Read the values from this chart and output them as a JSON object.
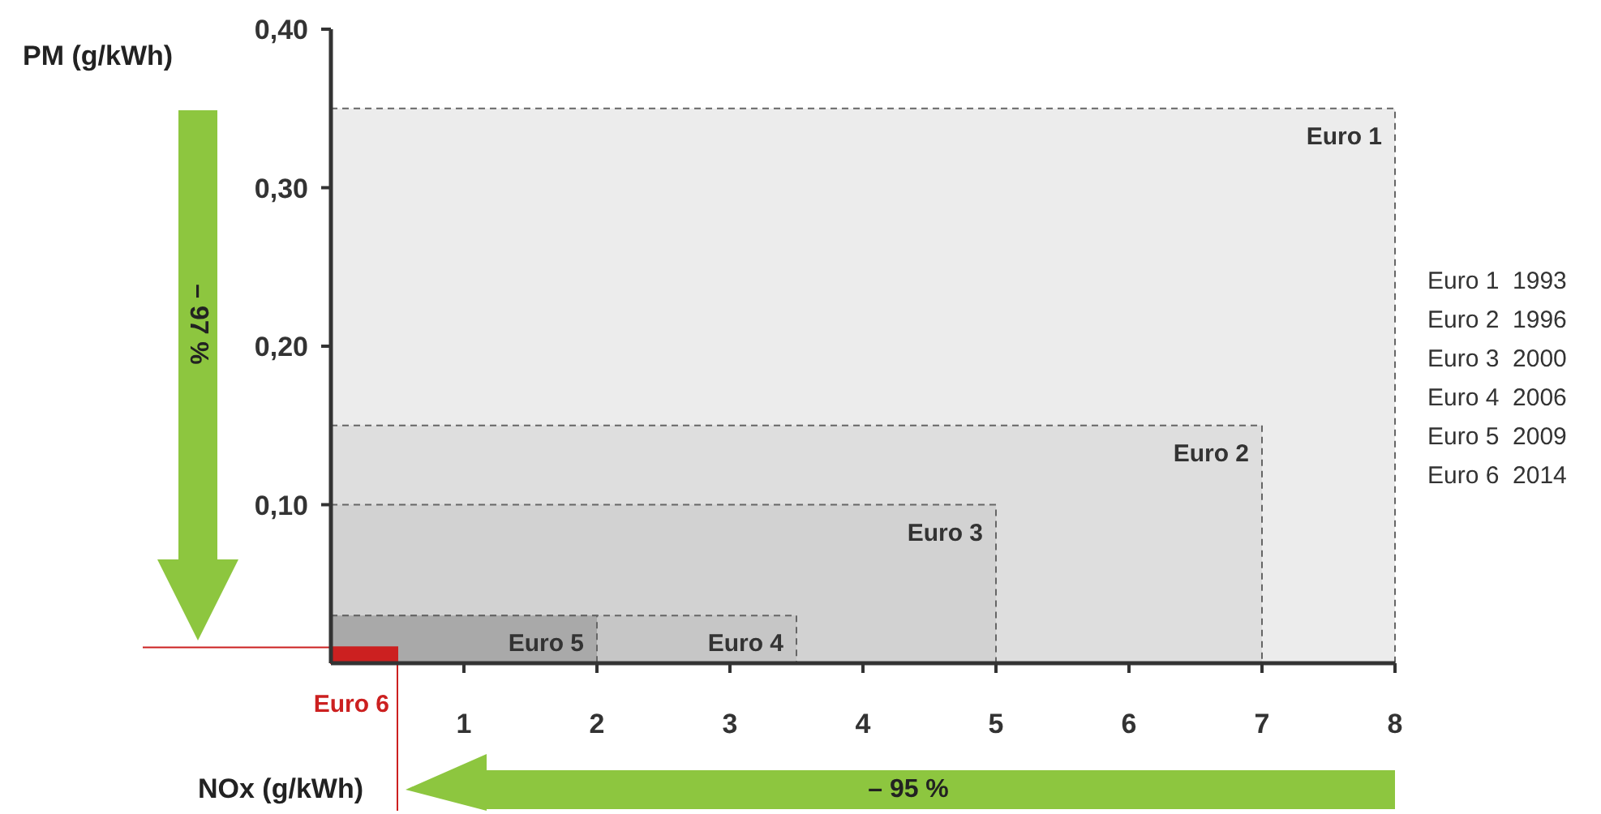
{
  "chart_data": {
    "type": "area",
    "xlabel": "NOx (g/kWh)",
    "ylabel": "PM (g/kWh)",
    "xlim": [
      0,
      8
    ],
    "ylim": [
      0,
      0.4
    ],
    "xticks": [
      1,
      2,
      3,
      4,
      5,
      6,
      7,
      8
    ],
    "yticks": [
      {
        "value": 0.1,
        "label": "0,10"
      },
      {
        "value": 0.2,
        "label": "0,20"
      },
      {
        "value": 0.3,
        "label": "0,30"
      },
      {
        "value": 0.4,
        "label": "0,40"
      }
    ],
    "line_style": "dashed",
    "grid": false,
    "legend": false,
    "series": [
      {
        "name": "Euro 1",
        "color": "#ececec",
        "x": [
          0,
          8
        ],
        "values": [
          0.35,
          0.35
        ]
      },
      {
        "name": "Euro 2",
        "color": "#dedede",
        "x": [
          0,
          7
        ],
        "values": [
          0.15,
          0.15
        ]
      },
      {
        "name": "Euro 3",
        "color": "#d2d2d2",
        "x": [
          0,
          5
        ],
        "values": [
          0.1,
          0.1
        ]
      },
      {
        "name": "Euro 4",
        "color": "#c6c6c6",
        "x": [
          0,
          3.5
        ],
        "values": [
          0.03,
          0.03
        ]
      },
      {
        "name": "Euro 5",
        "color": "#a9a9a9",
        "x": [
          0,
          2
        ],
        "values": [
          0.03,
          0.03
        ]
      },
      {
        "name": "Euro 6",
        "color": "#cc2020",
        "x": [
          0,
          0.5
        ],
        "values": [
          0.01,
          0.01
        ]
      }
    ],
    "annotations": [
      "Euro 1  1993",
      "Euro 2  1996",
      "Euro 3  2000",
      "Euro 4  2006",
      "Euro 5  2009",
      "Euro 6  2014",
      "– 97 %",
      "– 95 %"
    ]
  }
}
